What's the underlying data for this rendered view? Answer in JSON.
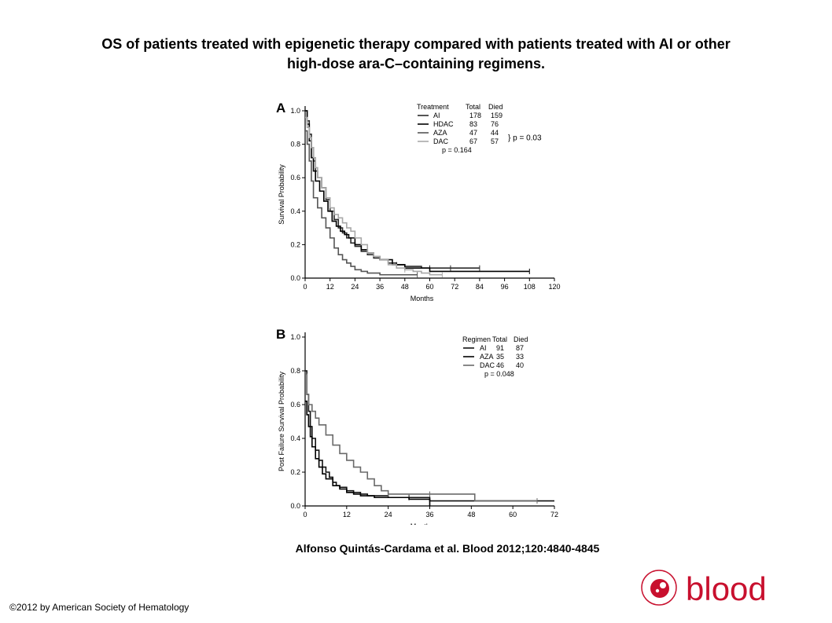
{
  "page": {
    "title_line1": "OS of patients treated with epigenetic therapy compared with patients treated with AI or other",
    "title_line2": "high-dose ara-C–containing regimens.",
    "citation": "Alfonso Quintás-Cardama et al. Blood 2012;120:4840-4845",
    "copyright": "©2012 by American Society of Hematology",
    "logo_text": "blood"
  },
  "chart_data": [
    {
      "type": "line",
      "panel": "A",
      "xlabel": "Months",
      "ylabel": "Survival Probability",
      "xlim": [
        0,
        120
      ],
      "ylim": [
        0,
        1.0
      ],
      "xticks": [
        0,
        12,
        24,
        36,
        48,
        60,
        72,
        84,
        96,
        108,
        120
      ],
      "yticks": [
        0.0,
        0.2,
        0.4,
        0.6,
        0.8,
        1.0
      ],
      "legend": {
        "headers": [
          "Treatment",
          "Total",
          "Died"
        ],
        "rows": [
          {
            "name": "AI",
            "total": "178",
            "died": "159"
          },
          {
            "name": "HDAC",
            "total": "83",
            "died": "76"
          },
          {
            "name": "AZA",
            "total": "47",
            "died": "44"
          },
          {
            "name": "DAC",
            "total": "67",
            "died": "57"
          }
        ],
        "p_bracket": "} p = 0.03",
        "p_main": "p = 0.164"
      },
      "series": [
        {
          "name": "AI",
          "color": "#2a2a2a",
          "x": [
            0,
            1,
            2,
            3,
            4,
            5,
            6,
            8,
            10,
            12,
            14,
            16,
            18,
            20,
            22,
            24,
            27,
            30,
            33,
            36,
            40,
            44,
            48,
            52,
            56,
            60,
            66,
            72,
            84
          ],
          "y": [
            1.0,
            0.94,
            0.86,
            0.78,
            0.7,
            0.64,
            0.6,
            0.54,
            0.47,
            0.4,
            0.35,
            0.3,
            0.27,
            0.24,
            0.21,
            0.19,
            0.16,
            0.14,
            0.12,
            0.11,
            0.09,
            0.08,
            0.07,
            0.07,
            0.06,
            0.06,
            0.06,
            0.06,
            0.06
          ],
          "censor_x": [
            44,
            60,
            70,
            84
          ]
        },
        {
          "name": "HDAC",
          "color": "#000000",
          "x": [
            0,
            1,
            2,
            3,
            4,
            5,
            7,
            9,
            11,
            13,
            15,
            17,
            19,
            21,
            24,
            27,
            30,
            33,
            36,
            42,
            48,
            60,
            72,
            108
          ],
          "y": [
            1.0,
            0.92,
            0.82,
            0.72,
            0.64,
            0.58,
            0.52,
            0.46,
            0.4,
            0.34,
            0.31,
            0.28,
            0.26,
            0.24,
            0.2,
            0.17,
            0.15,
            0.13,
            0.11,
            0.08,
            0.06,
            0.04,
            0.04,
            0.04
          ],
          "censor_x": [
            108
          ]
        },
        {
          "name": "AZA",
          "color": "#555555",
          "x": [
            0,
            1,
            2,
            3,
            4,
            6,
            8,
            10,
            12,
            14,
            16,
            18,
            20,
            22,
            24,
            27,
            30,
            36,
            42,
            48,
            54
          ],
          "y": [
            0.88,
            0.8,
            0.7,
            0.58,
            0.48,
            0.42,
            0.36,
            0.3,
            0.24,
            0.18,
            0.14,
            0.11,
            0.09,
            0.07,
            0.05,
            0.04,
            0.03,
            0.02,
            0.02,
            0.02,
            0.02
          ],
          "censor_x": [
            54
          ]
        },
        {
          "name": "DAC",
          "color": "#a8a8a8",
          "x": [
            0,
            1,
            2,
            3,
            4,
            5,
            6,
            8,
            10,
            12,
            14,
            16,
            18,
            20,
            22,
            24,
            27,
            30,
            33,
            36,
            40,
            44,
            48,
            52,
            56,
            60,
            66
          ],
          "y": [
            0.96,
            0.9,
            0.84,
            0.78,
            0.72,
            0.66,
            0.6,
            0.54,
            0.48,
            0.42,
            0.38,
            0.36,
            0.33,
            0.3,
            0.28,
            0.24,
            0.2,
            0.15,
            0.13,
            0.11,
            0.08,
            0.06,
            0.05,
            0.04,
            0.03,
            0.02,
            0.02
          ],
          "censor_x": [
            48,
            66
          ]
        }
      ]
    },
    {
      "type": "line",
      "panel": "B",
      "xlabel": "Months",
      "ylabel": "Post Failure Survival Probability",
      "xlim": [
        0,
        72
      ],
      "ylim": [
        0,
        1.0
      ],
      "xticks": [
        0,
        12,
        24,
        36,
        48,
        60,
        72
      ],
      "yticks": [
        0.0,
        0.2,
        0.4,
        0.6,
        0.8,
        1.0
      ],
      "legend": {
        "headers": [
          "Regimen",
          "Total",
          "Died"
        ],
        "rows": [
          {
            "name": "AI",
            "total": "91",
            "died": "87"
          },
          {
            "name": "AZA",
            "total": "35",
            "died": "33"
          },
          {
            "name": "DAC",
            "total": "46",
            "died": "40"
          }
        ],
        "p_main": "p = 0.048"
      },
      "series": [
        {
          "name": "AI",
          "color": "#111111",
          "x": [
            0,
            0.5,
            1,
            1.5,
            2,
            3,
            4,
            5,
            6,
            7,
            8,
            9,
            10,
            12,
            14,
            16,
            18,
            20,
            24,
            30,
            36,
            72
          ],
          "y": [
            0.8,
            0.66,
            0.56,
            0.47,
            0.4,
            0.33,
            0.27,
            0.23,
            0.2,
            0.17,
            0.14,
            0.12,
            0.11,
            0.09,
            0.08,
            0.07,
            0.06,
            0.06,
            0.05,
            0.05,
            0.03,
            0.03
          ],
          "censor_x": [
            30,
            36
          ]
        },
        {
          "name": "AZA",
          "color": "#000000",
          "x": [
            0,
            0.5,
            1,
            1.5,
            2,
            3,
            4,
            5,
            6,
            8,
            10,
            12,
            14,
            16,
            20,
            24,
            30,
            36
          ],
          "y": [
            0.62,
            0.54,
            0.47,
            0.41,
            0.35,
            0.28,
            0.23,
            0.19,
            0.16,
            0.12,
            0.1,
            0.08,
            0.07,
            0.06,
            0.05,
            0.05,
            0.04,
            0.0
          ],
          "censor_x": []
        },
        {
          "name": "DAC",
          "color": "#6a6a6a",
          "x": [
            0,
            0.5,
            1,
            2,
            3,
            4,
            6,
            8,
            10,
            12,
            14,
            16,
            18,
            20,
            22,
            24,
            36,
            49,
            49,
            67
          ],
          "y": [
            0.78,
            0.66,
            0.6,
            0.56,
            0.52,
            0.48,
            0.42,
            0.36,
            0.31,
            0.27,
            0.23,
            0.2,
            0.16,
            0.12,
            0.09,
            0.07,
            0.07,
            0.07,
            0.03,
            0.03
          ],
          "censor_x": [
            24,
            36,
            67
          ]
        }
      ]
    }
  ]
}
